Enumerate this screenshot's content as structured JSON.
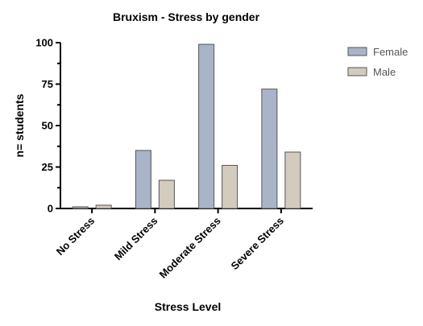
{
  "chart_data": {
    "type": "bar",
    "title": "Bruxism - Stress by gender",
    "xlabel": "Stress Level",
    "ylabel": "n= students",
    "categories": [
      "No Stress",
      "Mild Stress",
      "Moderate Stress",
      "Severe Stress"
    ],
    "series": [
      {
        "name": "Female",
        "values": [
          1,
          35,
          99,
          72
        ],
        "color": "#A9B4C9"
      },
      {
        "name": "Male",
        "values": [
          2,
          17,
          26,
          34
        ],
        "color": "#D2CBBE"
      }
    ],
    "ylim": [
      0,
      100
    ],
    "yticks": [
      0,
      25,
      50,
      75,
      100
    ],
    "yticks_labels": [
      "0",
      "25",
      "50",
      "75",
      "100"
    ],
    "grid": false,
    "legend_position": "top-right"
  }
}
